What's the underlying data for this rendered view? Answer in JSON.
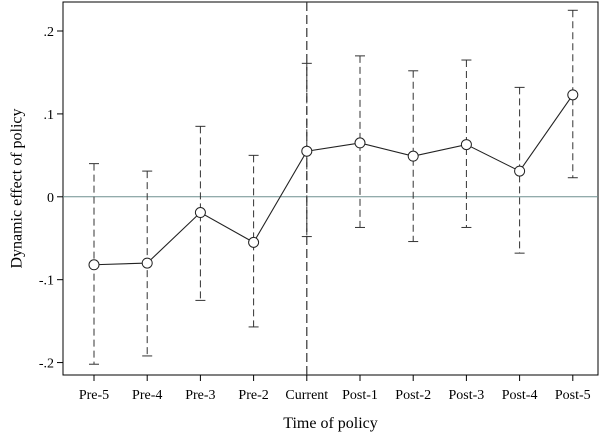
{
  "chart_data": {
    "type": "line",
    "categories": [
      "Pre-5",
      "Pre-4",
      "Pre-3",
      "Pre-2",
      "Current",
      "Post-1",
      "Post-2",
      "Post-3",
      "Post-4",
      "Post-5"
    ],
    "values": [
      -0.082,
      -0.08,
      -0.019,
      -0.055,
      0.055,
      0.065,
      0.049,
      0.063,
      0.031,
      0.123
    ],
    "ci_lower": [
      -0.202,
      -0.192,
      -0.125,
      -0.157,
      -0.048,
      -0.037,
      -0.054,
      -0.037,
      -0.068,
      0.023
    ],
    "ci_upper": [
      0.04,
      0.031,
      0.085,
      0.05,
      0.161,
      0.17,
      0.152,
      0.165,
      0.132,
      0.225
    ],
    "xlabel": "Time of policy",
    "ylabel": "Dynamic effect of policy",
    "ylim": [
      -0.215,
      0.235
    ],
    "yticks": [
      -0.2,
      -0.1,
      0,
      0.1,
      0.2
    ],
    "ytick_labels": [
      "-.2",
      "-.1",
      "0",
      ".1",
      ".2"
    ],
    "reference_line_y": 0,
    "reference_line_x": "Current",
    "grid": false,
    "legend": "none"
  }
}
